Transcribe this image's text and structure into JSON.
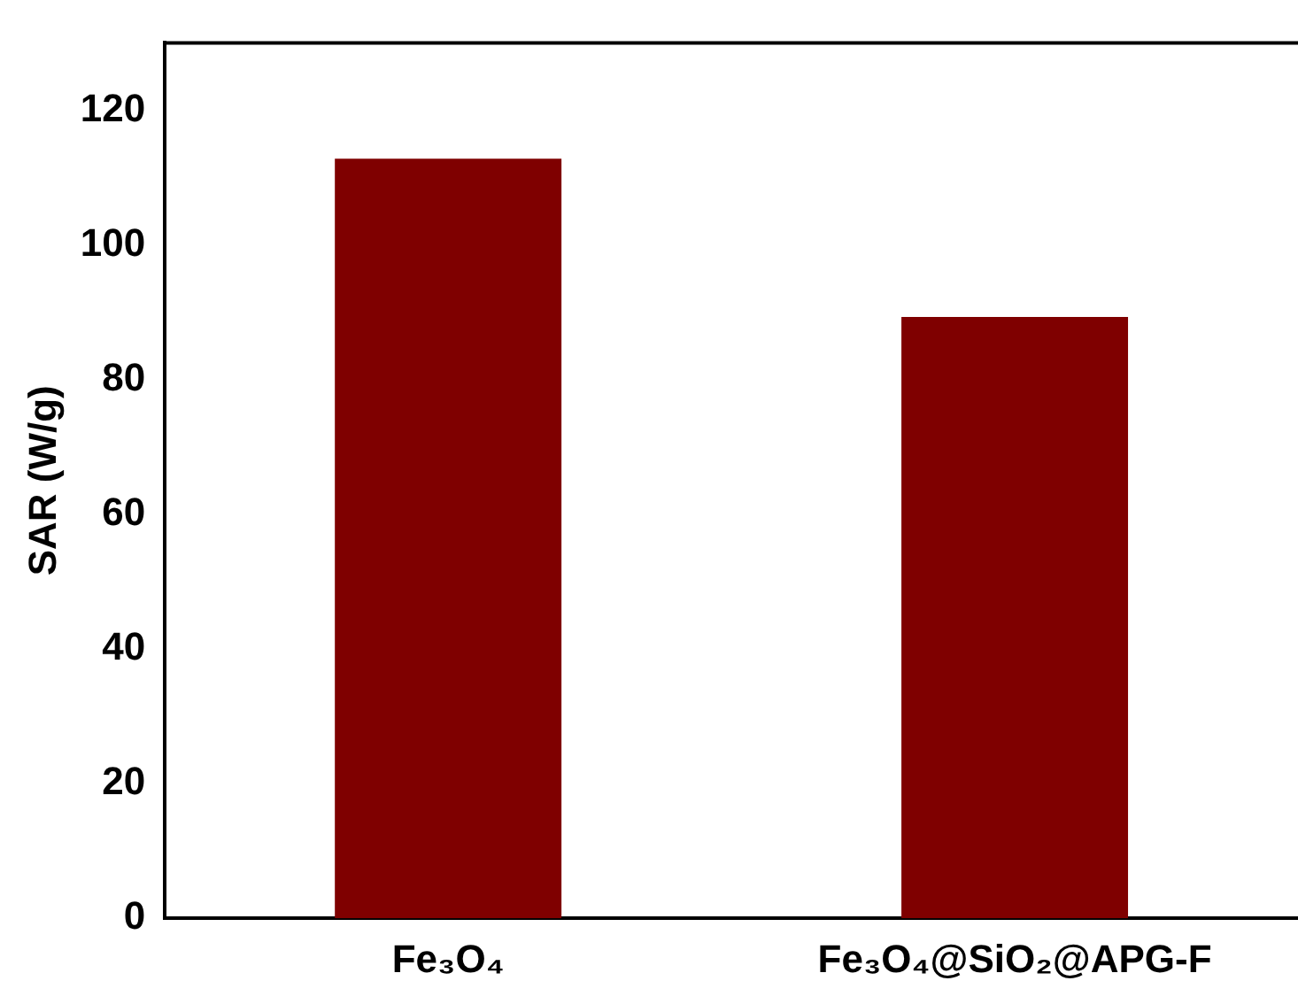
{
  "chart_data": {
    "type": "bar",
    "ylabel": "SAR (W/g)",
    "categories": [
      "Fe₃O₄",
      "Fe₃O₄@SiO₂@APG-F"
    ],
    "values": [
      112.8,
      89.3
    ],
    "color": "#7f0000",
    "ylim": [
      0,
      130
    ],
    "yticks": [
      0,
      20,
      40,
      60,
      80,
      100,
      120
    ],
    "grid": false,
    "legend": false
  }
}
